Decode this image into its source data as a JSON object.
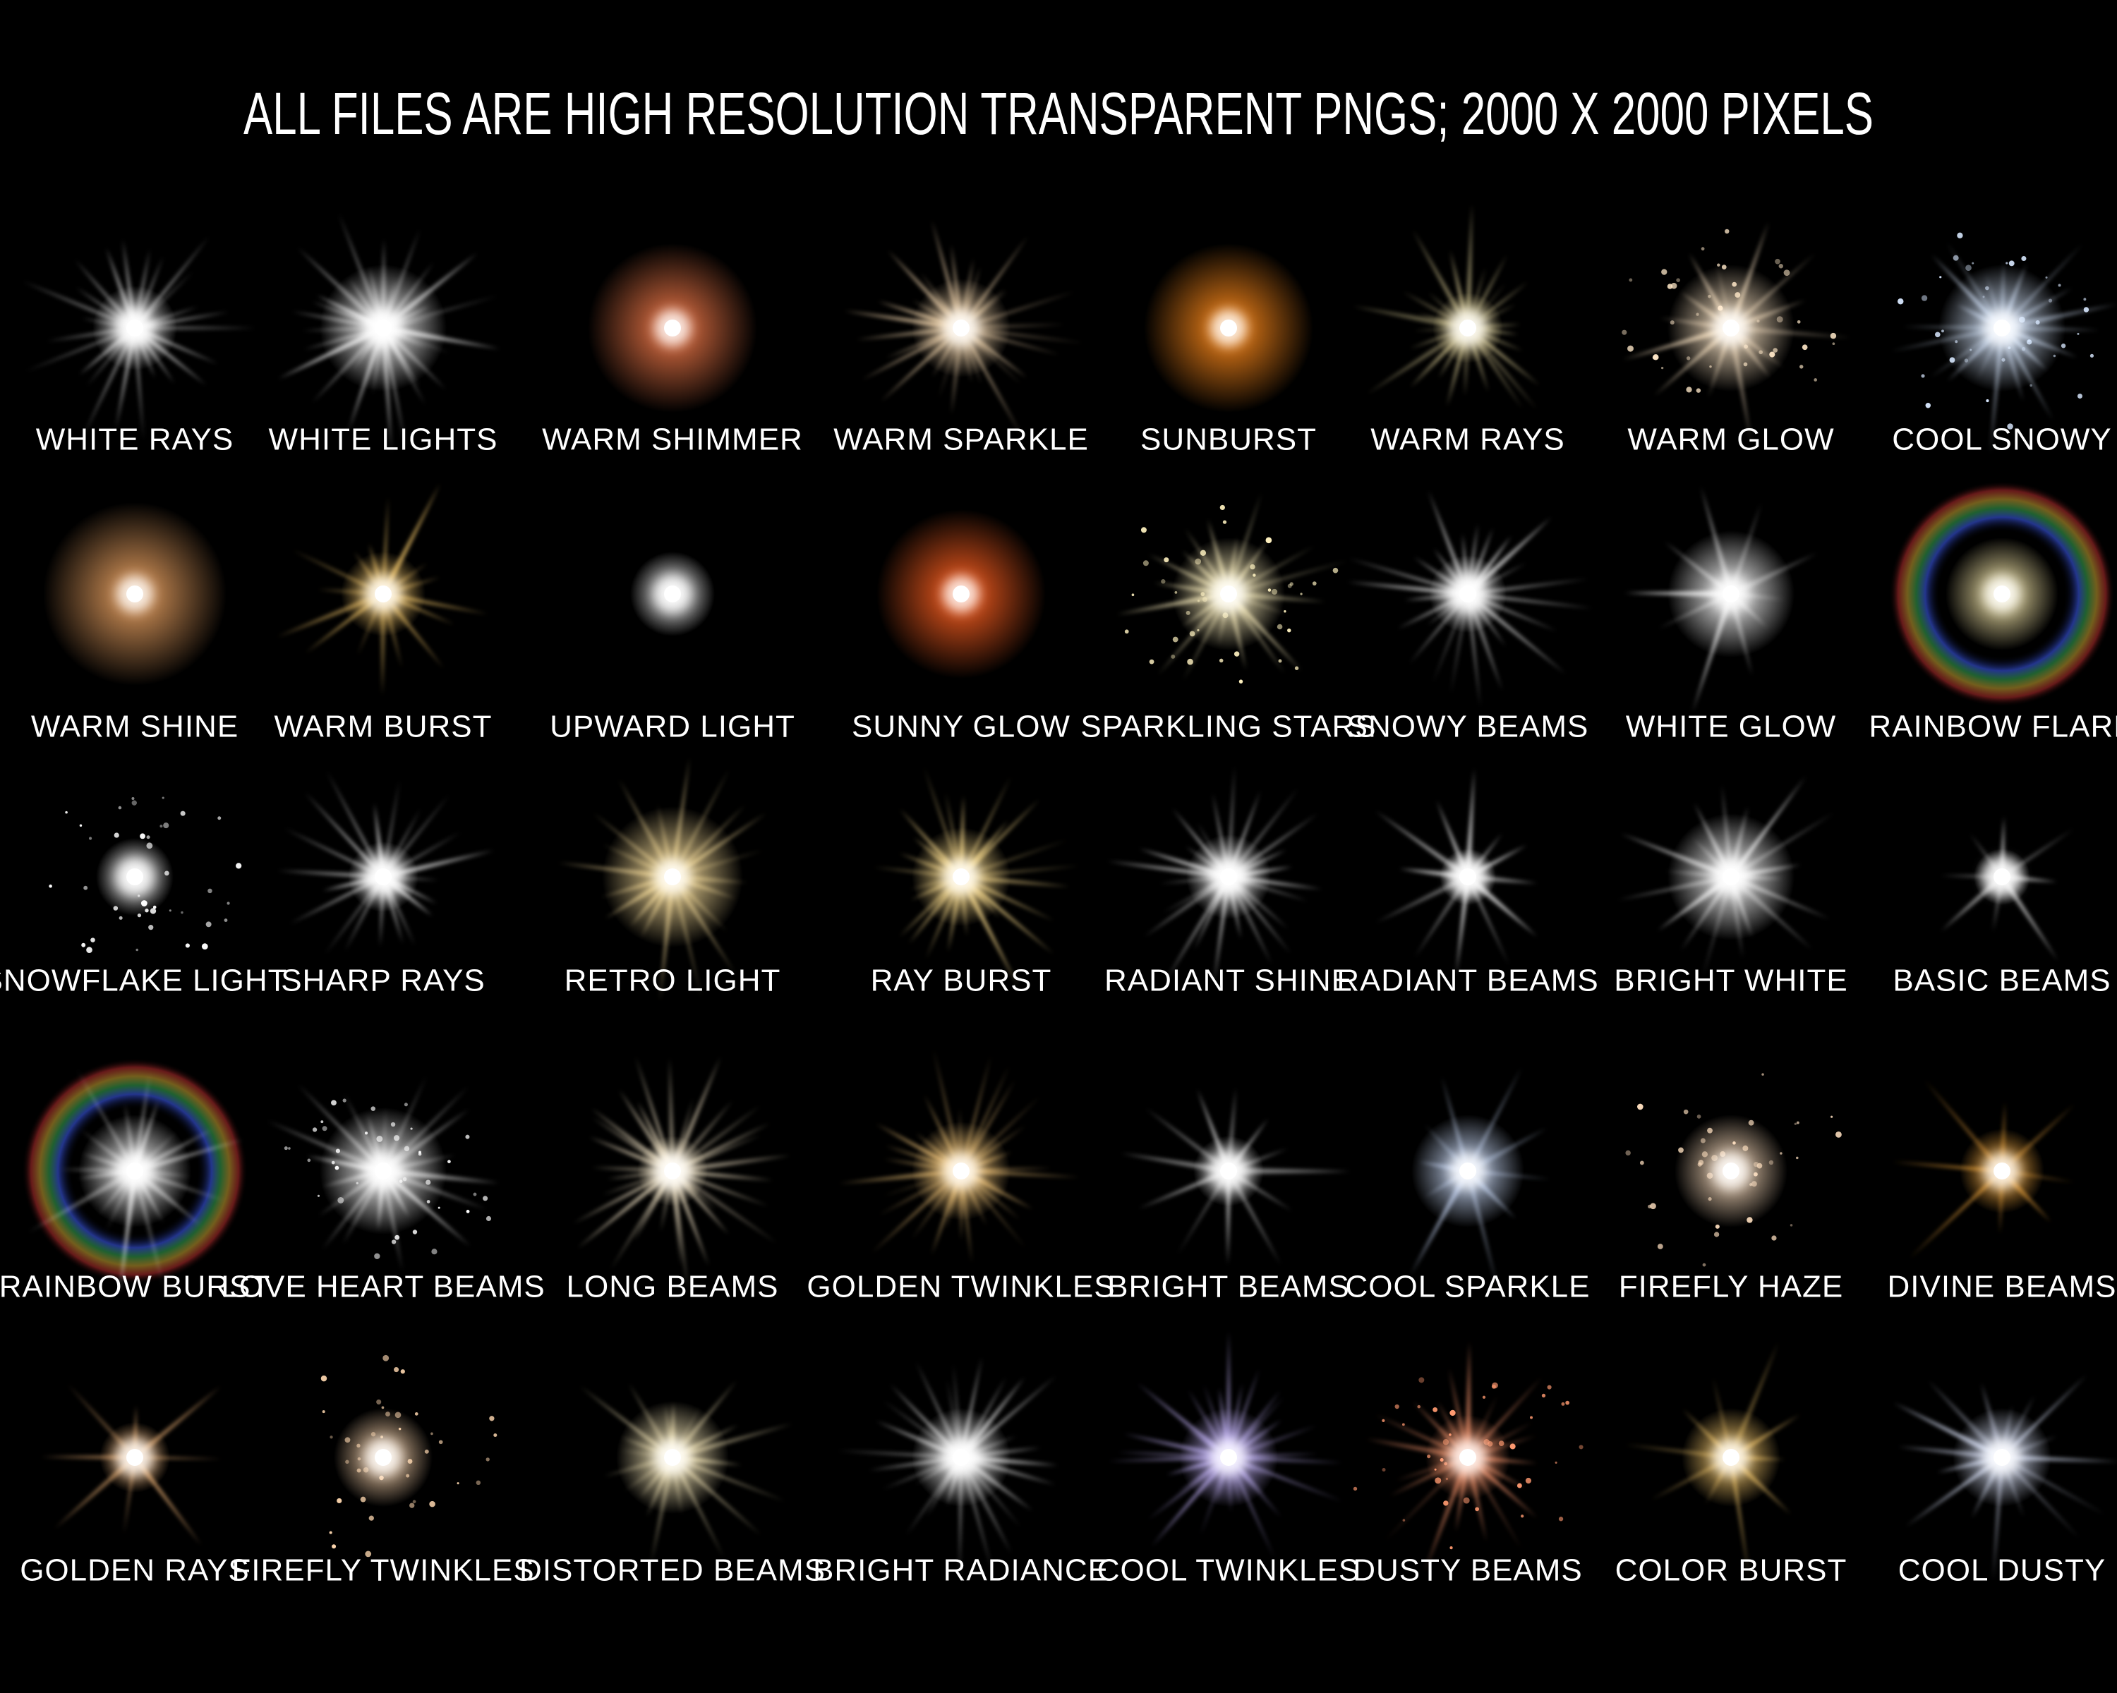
{
  "title": "ALL FILES ARE HIGH RESOLUTION TRANSPARENT PNGS; 2000 X 2000 PIXELS",
  "grid": {
    "rows": [
      [
        "WHITE RAYS",
        "WHITE LIGHTS",
        "WARM SHIMMER",
        "WARM SPARKLE",
        "SUNBURST",
        "WARM RAYS",
        "WARM GLOW",
        "COOL SNOWY"
      ],
      [
        "WARM SHINE",
        "WARM BURST",
        "UPWARD LIGHT",
        "SUNNY GLOW",
        "SPARKLING STARS",
        "SNOWY BEAMS",
        "WHITE GLOW",
        "RAINBOW FLARE"
      ],
      [
        "SNOWFLAKE LIGHT",
        "SHARP RAYS",
        "RETRO LIGHT",
        "RAY BURST",
        "RADIANT SHINE",
        "RADIANT BEAMS",
        "BRIGHT WHITE",
        "BASIC BEAMS"
      ],
      [
        "RAINBOW BURST",
        "LOVE HEART BEAMS",
        "LONG BEAMS",
        "GOLDEN TWINKLES",
        "BRIGHT BEAMS",
        "COOL SPARKLE",
        "FIREFLY HAZE",
        "DIVINE BEAMS"
      ],
      [
        "GOLDEN RAYS",
        "FIREFLY TWINKLES",
        "DISTORTED BEAMS",
        "BRIGHT RADIANCE",
        "COOL TWINKLES",
        "DUSTY BEAMS",
        "COLOR BURST",
        "COOL DUSTY"
      ]
    ]
  }
}
